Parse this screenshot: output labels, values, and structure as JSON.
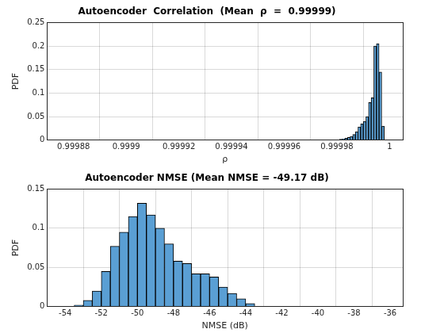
{
  "chart_data": [
    {
      "type": "histogram",
      "title": "Autoencoder  Correlation  (Mean  ρ  =  0.99999)",
      "xlabel": "ρ",
      "ylabel": "PDF",
      "bins": [
        0.99998,
        0.999981,
        0.999982,
        0.999983,
        0.999984,
        0.999985,
        0.999986,
        0.999987,
        0.999988,
        0.999989,
        0.99999,
        0.999991,
        0.999992,
        0.999993,
        0.999994,
        0.999995,
        0.999996,
        0.999997,
        0.999998
      ],
      "values": [
        0.001,
        0.002,
        0.003,
        0.004,
        0.006,
        0.008,
        0.012,
        0.018,
        0.028,
        0.035,
        0.04,
        0.05,
        0.08,
        0.09,
        0.2,
        0.205,
        0.145,
        0.03
      ],
      "color": "#5a9fd4",
      "xlim": [
        0.99987,
        1.000005
      ],
      "xticks": [
        0.99988,
        0.9999,
        0.99992,
        0.99994,
        0.99996,
        0.99998,
        1
      ],
      "ylim": [
        0,
        0.25
      ],
      "yticks": [
        0,
        0.05,
        0.1,
        0.15,
        0.2,
        0.25
      ],
      "grid": true
    },
    {
      "type": "histogram",
      "title": "Autoencoder NMSE (Mean NMSE = -49.17 dB)",
      "xlabel": "NMSE (dB)",
      "ylabel": "PDF",
      "bins": [
        -53.5,
        -53,
        -52.5,
        -52,
        -51.5,
        -51,
        -50.5,
        -50,
        -49.5,
        -49,
        -48.5,
        -48,
        -47.5,
        -47,
        -46.5,
        -46,
        -45.5,
        -45,
        -44.5,
        -44,
        -43.5
      ],
      "values": [
        0.002,
        0.008,
        0.02,
        0.045,
        0.077,
        0.095,
        0.115,
        0.132,
        0.117,
        0.1,
        0.08,
        0.058,
        0.055,
        0.042,
        0.042,
        0.038,
        0.025,
        0.017,
        0.01,
        0.004
      ],
      "color": "#5a9fd4",
      "xlim": [
        -55,
        -35.3
      ],
      "xticks": [
        -54,
        -52,
        -50,
        -48,
        -46,
        -44,
        -42,
        -40,
        -38,
        -36
      ],
      "ylim": [
        0,
        0.15
      ],
      "yticks": [
        0,
        0.05,
        0.1,
        0.15
      ],
      "grid": true
    }
  ]
}
